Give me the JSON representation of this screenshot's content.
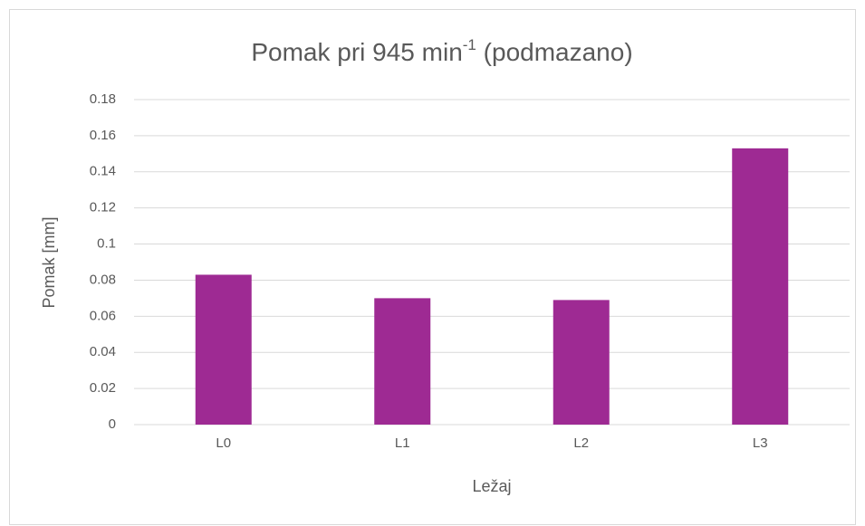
{
  "chart_data": {
    "type": "bar",
    "title": [
      {
        "text": "Pomak pri 945 min"
      },
      {
        "text": "-1",
        "superscript": true
      },
      {
        "text": " (podmazano)"
      }
    ],
    "x_label": "Ležaj",
    "y_label": "Pomak [mm]",
    "categories": [
      "L0",
      "L1",
      "L2",
      "L3"
    ],
    "values": [
      0.083,
      0.07,
      0.069,
      0.153
    ],
    "color": "#9e2a93",
    "ylim": [
      0,
      0.18
    ],
    "yticks": [
      0,
      0.02,
      0.04,
      0.06,
      0.08,
      0.1,
      0.12,
      0.14,
      0.16,
      0.18
    ],
    "grid": true
  }
}
